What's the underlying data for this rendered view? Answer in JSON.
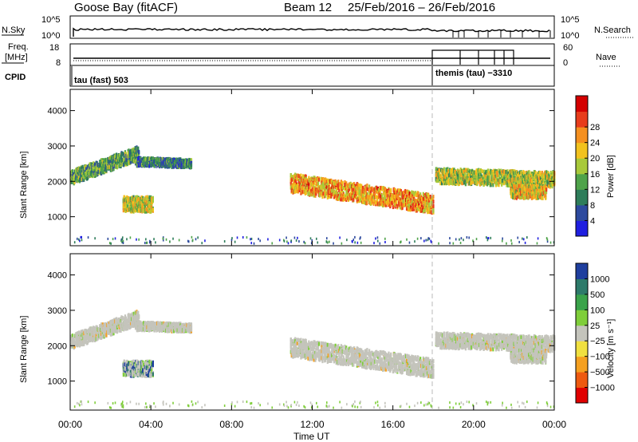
{
  "header": {
    "station": "Goose Bay (fitACF)",
    "beam": "Beam 12",
    "dates": "25/Feb/2016 – 26/Feb/2016"
  },
  "noise_panel": {
    "left_label": "N.Sky",
    "right_label": "N.Search",
    "left_ticks": [
      "10^5",
      "10^0"
    ],
    "right_ticks": [
      "10^5",
      "10^0"
    ]
  },
  "freq_panel": {
    "left_label_1": "Freq.",
    "left_label_2": "[MHz]",
    "left_ticks": [
      "18",
      "8"
    ],
    "right_label": "Nave",
    "right_ticks": [
      "60",
      "0"
    ]
  },
  "cpid_panel": {
    "label": "CPID",
    "mode_1": "tau (fast) 503",
    "mode_2": "themis (tau) −3310"
  },
  "chart_data": [
    {
      "type": "heatmap",
      "name": "power",
      "ylabel": "Slant Range [km]",
      "yticks": [
        1000,
        2000,
        3000,
        4000
      ],
      "ylim": [
        180,
        4600
      ],
      "xlim_hours": [
        0,
        24
      ],
      "colorbar_label": "Power [dB]",
      "colorbar_ticks": [
        "4",
        "8",
        "12",
        "16",
        "20",
        "24",
        "28"
      ],
      "colorbar_colors": [
        "#1f1fe0",
        "#2d4a9e",
        "#2e7d5a",
        "#4fa34a",
        "#a8c93a",
        "#f2c21e",
        "#f59020",
        "#e83d1c",
        "#d40000"
      ],
      "regions": [
        {
          "t0": 0.0,
          "t1": 3.4,
          "r_center": [
            2100,
            2800
          ],
          "width": 240,
          "level": 0.35
        },
        {
          "t0": 2.6,
          "t1": 4.1,
          "r_center": [
            1350,
            1350
          ],
          "width": 260,
          "level": 0.55
        },
        {
          "t0": 3.2,
          "t1": 6.0,
          "r_center": [
            2550,
            2500
          ],
          "width": 140,
          "level": 0.25
        },
        {
          "t0": 10.9,
          "t1": 18.0,
          "r_center": [
            1950,
            1350
          ],
          "width": 320,
          "level": 0.7
        },
        {
          "t0": 18.1,
          "t1": 24.0,
          "r_center": [
            2150,
            2050
          ],
          "width": 260,
          "level": 0.5
        },
        {
          "t0": 21.8,
          "t1": 23.6,
          "r_center": [
            1700,
            1700
          ],
          "width": 220,
          "level": 0.6
        }
      ]
    },
    {
      "type": "heatmap",
      "name": "velocity",
      "ylabel": "Slant Range [km]",
      "yticks": [
        1000,
        2000,
        3000,
        4000
      ],
      "ylim": [
        180,
        4600
      ],
      "xlim_hours": [
        0,
        24
      ],
      "xticks": [
        "00:00",
        "04:00",
        "08:00",
        "12:00",
        "16:00",
        "20:00",
        "00:00"
      ],
      "xlabel": "Time UT",
      "colorbar_label": "Velocity [m s⁻¹]",
      "colorbar_ticks": [
        "1000",
        "500",
        "100",
        "25",
        "−25",
        "−100",
        "−500",
        "−1000"
      ],
      "colorbar_colors": [
        "#1f3f9e",
        "#2d7a6a",
        "#3aa34a",
        "#7fce3a",
        "#c4c4bc",
        "#f0e040",
        "#f5a020",
        "#ee5a10",
        "#e00000"
      ]
    }
  ]
}
